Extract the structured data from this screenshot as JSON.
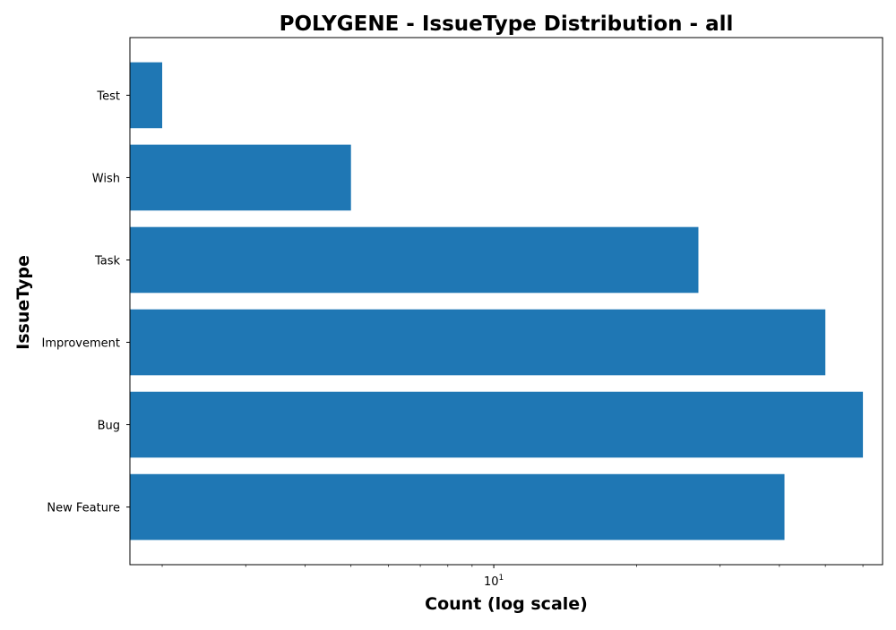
{
  "chart_data": {
    "type": "bar",
    "orientation": "horizontal",
    "title": "POLYGENE - IssueType Distribution - all",
    "xlabel": "Count (log scale)",
    "ylabel": "IssueType",
    "x_scale": "log",
    "xlim": [
      1.71,
      66
    ],
    "x_tick_labels": [
      {
        "value": 10,
        "base": "10",
        "exponent": "1"
      }
    ],
    "categories": [
      "New Feature",
      "Bug",
      "Improvement",
      "Task",
      "Wish",
      "Test"
    ],
    "values": [
      41,
      60,
      50,
      27,
      5,
      2
    ],
    "bar_color": "#1f77b4",
    "grid": false,
    "legend": "none"
  }
}
